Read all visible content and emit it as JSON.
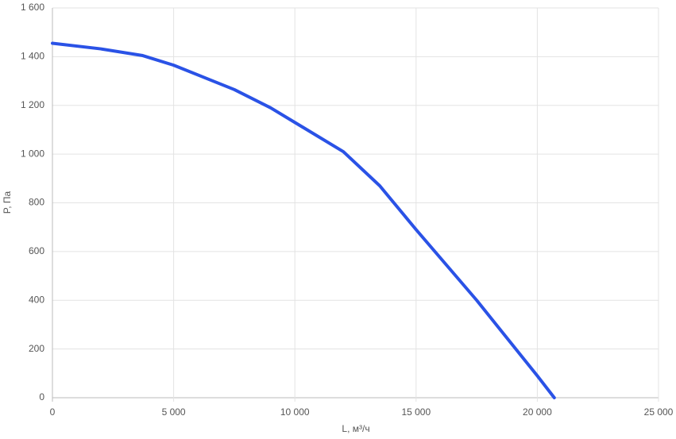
{
  "chart_data": {
    "type": "line",
    "x_label": "L, м³/ч",
    "y_label": "P, Па",
    "series": [
      {
        "name": "P",
        "color": "#2a52e6",
        "x": [
          0,
          2000,
          3700,
          5000,
          7500,
          9000,
          10000,
          12000,
          13500,
          15000,
          17500,
          20000,
          20700
        ],
        "values": [
          1455,
          1432,
          1405,
          1365,
          1265,
          1190,
          1130,
          1010,
          870,
          690,
          400,
          90,
          0
        ]
      }
    ],
    "xlim": [
      0,
      25000
    ],
    "xticks": [
      0,
      {
        "value": 5000,
        "label": "5 000"
      },
      {
        "value": 10000,
        "label": "10 000"
      },
      {
        "value": 15000,
        "label": "15 000"
      },
      {
        "value": 20000,
        "label": "20 000"
      },
      {
        "value": 25000,
        "label": "25 000"
      }
    ],
    "ylim": [
      0,
      1600
    ],
    "yticks": [
      0,
      200,
      400,
      600,
      800,
      {
        "value": 1000,
        "label": "1 000"
      },
      {
        "value": 1200,
        "label": "1 200"
      },
      {
        "value": 1400,
        "label": "1 400"
      },
      {
        "value": 1600,
        "label": "1 600"
      }
    ],
    "grid": true
  }
}
